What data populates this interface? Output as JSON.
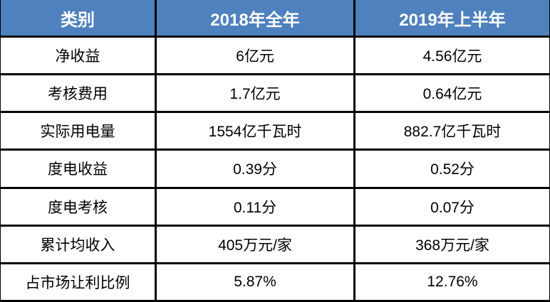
{
  "chart_data": {
    "type": "table",
    "columns": [
      "类别",
      "2018年全年",
      "2019年上半年"
    ],
    "rows": [
      [
        "净收益",
        "6亿元",
        "4.56亿元"
      ],
      [
        "考核费用",
        "1.7亿元",
        "0.64亿元"
      ],
      [
        "实际用电量",
        "1554亿千瓦时",
        "882.7亿千瓦时"
      ],
      [
        "度电收益",
        "0.39分",
        "0.52分"
      ],
      [
        "度电考核",
        "0.11分",
        "0.07分"
      ],
      [
        "累计均收入",
        "405万元/家",
        "368万元/家"
      ],
      [
        "占市场让利比例",
        "5.87%",
        "12.76%"
      ]
    ],
    "layout": {
      "legend": "none",
      "grid": "on",
      "header_position": "top"
    }
  },
  "colors": {
    "header_bg": "#4E81BD",
    "header_text": "#FFFFFF",
    "border": "#000000",
    "body_bg": "#FFFFFF",
    "body_text": "#000000"
  }
}
